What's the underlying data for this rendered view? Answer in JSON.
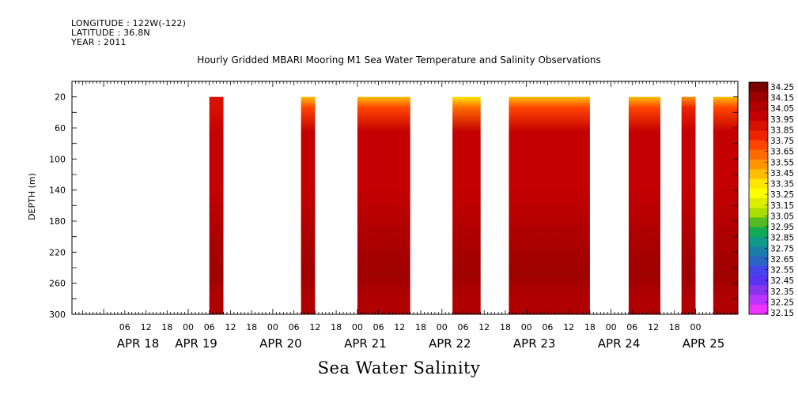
{
  "header": {
    "longitude": "LONGITUDE : 122W(-122)",
    "latitude": "LATITUDE : 36.8N",
    "year": "YEAR : 2011"
  },
  "chart_data": {
    "type": "heatmap",
    "title": "Hourly Gridded MBARI Mooring M1 Sea Water Temperature and Salinity Observations",
    "xlabel": "Sea Water Salinity",
    "ylabel": "DEPTH (m)",
    "x_unit": "hours since APR 18 2011 00:00",
    "xlim": [
      -9,
      180
    ],
    "ylim": [
      300,
      0
    ],
    "hour_ticks": [
      "06",
      "12",
      "18",
      "00",
      "06",
      "12",
      "18",
      "00",
      "06",
      "12",
      "18",
      "00",
      "06",
      "12",
      "18",
      "00",
      "06",
      "12",
      "18",
      "00",
      "06",
      "12",
      "18",
      "00",
      "06",
      "12",
      "18",
      "00"
    ],
    "date_labels": [
      "APR 18",
      "APR 19",
      "APR 20",
      "APR 21",
      "APR 22",
      "APR 23",
      "APR 24",
      "APR 25"
    ],
    "y_ticks": [
      20,
      60,
      100,
      140,
      180,
      220,
      260,
      300
    ],
    "data_depth_range": [
      20,
      300
    ],
    "colorbar": {
      "labels": [
        "34.25",
        "34.15",
        "34.05",
        "33.95",
        "33.85",
        "33.75",
        "33.65",
        "33.55",
        "33.45",
        "33.35",
        "33.25",
        "33.15",
        "33.05",
        "32.95",
        "32.85",
        "32.75",
        "32.65",
        "32.55",
        "32.45",
        "32.35",
        "32.25",
        "32.15"
      ],
      "colors": [
        "#7a0000",
        "#9e0000",
        "#b00000",
        "#c40000",
        "#d81000",
        "#ee2200",
        "#ff4400",
        "#ff6a00",
        "#ff9300",
        "#ffbd00",
        "#ffe500",
        "#ffff00",
        "#ddee00",
        "#aadd00",
        "#55bb22",
        "#11aa55",
        "#119988",
        "#1a7ca8",
        "#2b63c2",
        "#4444e8",
        "#5a33f0",
        "#8833ee",
        "#bb33ff",
        "#ee33ff"
      ]
    },
    "segments": [
      {
        "start": 30,
        "end": 34,
        "surface": 33.85,
        "mid": 33.95,
        "deep": 34.05,
        "bottom": 34.15
      },
      {
        "start": 56,
        "end": 60,
        "surface": 33.45,
        "mid": 33.95,
        "deep": 34.05,
        "bottom": 34.15
      },
      {
        "start": 72,
        "end": 87,
        "surface": 33.45,
        "mid": 33.95,
        "deep": 34.05,
        "bottom": 34.15
      },
      {
        "start": 99,
        "end": 107,
        "surface": 33.35,
        "mid": 33.95,
        "deep": 34.05,
        "bottom": 34.15
      },
      {
        "start": 115,
        "end": 138,
        "surface": 33.45,
        "mid": 33.95,
        "deep": 34.05,
        "bottom": 34.15
      },
      {
        "start": 149,
        "end": 158,
        "surface": 33.45,
        "mid": 33.95,
        "deep": 34.05,
        "bottom": 34.15
      },
      {
        "start": 164,
        "end": 168,
        "surface": 33.55,
        "mid": 33.95,
        "deep": 34.05,
        "bottom": 34.15
      },
      {
        "start": 173,
        "end": 180,
        "surface": 33.45,
        "mid": 33.95,
        "deep": 34.05,
        "bottom": 34.15
      }
    ],
    "grid": false,
    "legend_position": "right"
  }
}
